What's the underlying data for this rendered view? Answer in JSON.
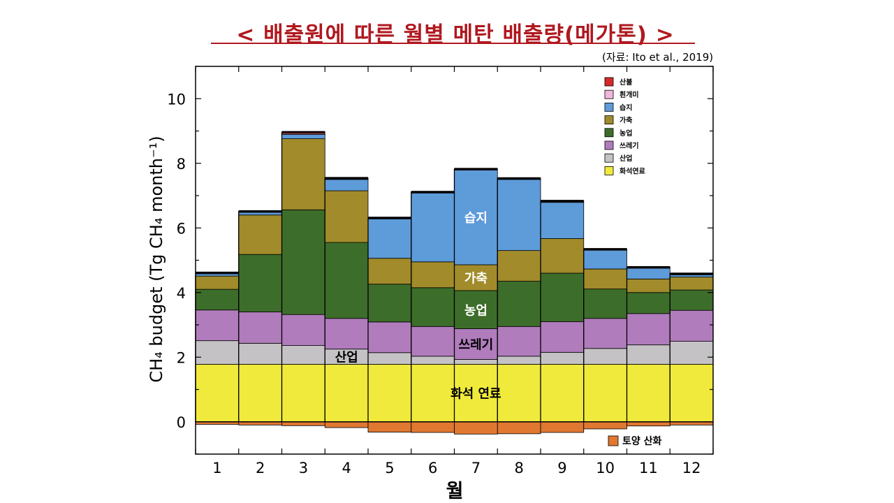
{
  "title": "< 배출원에 따른 월별 메탄 배출량(메가톤) >",
  "source": "(자료: Ito et al., 2019)",
  "chart_data": {
    "type": "bar",
    "stacked": true,
    "xlabel": "월",
    "ylabel": "CH₄ budget (Tg CH₄ month⁻¹)",
    "categories": [
      "1",
      "2",
      "3",
      "4",
      "5",
      "6",
      "7",
      "8",
      "9",
      "10",
      "11",
      "12"
    ],
    "ylim": [
      -1,
      11
    ],
    "yticks": [
      0,
      2,
      4,
      6,
      8,
      10
    ],
    "grid": false,
    "legend_position": "top-right",
    "series": [
      {
        "name": "화석연료",
        "color": "#f0ea3c",
        "values": [
          1.78,
          1.78,
          1.78,
          1.78,
          1.78,
          1.78,
          1.78,
          1.78,
          1.78,
          1.78,
          1.78,
          1.78
        ]
      },
      {
        "name": "산업",
        "color": "#c4c2c4",
        "values": [
          0.73,
          0.65,
          0.58,
          0.47,
          0.36,
          0.25,
          0.15,
          0.25,
          0.37,
          0.49,
          0.6,
          0.71
        ]
      },
      {
        "name": "쓰레기",
        "color": "#b07cbc",
        "values": [
          0.95,
          0.97,
          0.96,
          0.95,
          0.95,
          0.92,
          0.95,
          0.92,
          0.95,
          0.93,
          0.97,
          0.96
        ]
      },
      {
        "name": "농업",
        "color": "#3d6d2a",
        "values": [
          0.64,
          1.78,
          3.24,
          2.35,
          1.17,
          1.2,
          1.18,
          1.4,
          1.5,
          0.91,
          0.65,
          0.63
        ]
      },
      {
        "name": "가축",
        "color": "#a18b2a",
        "values": [
          0.41,
          1.22,
          2.2,
          1.6,
          0.8,
          0.8,
          0.8,
          0.95,
          1.07,
          0.62,
          0.42,
          0.4
        ]
      },
      {
        "name": "습지",
        "color": "#5e9bd9",
        "values": [
          0.07,
          0.08,
          0.13,
          0.35,
          1.22,
          2.13,
          2.93,
          2.2,
          1.12,
          0.58,
          0.33,
          0.07
        ]
      },
      {
        "name": "흰개미",
        "color": "#f0b8dc",
        "values": [
          0.02,
          0.02,
          0.03,
          0.02,
          0.02,
          0.02,
          0.02,
          0.02,
          0.02,
          0.02,
          0.02,
          0.02
        ]
      },
      {
        "name": "산불",
        "color": "#d42a2a",
        "values": [
          0.02,
          0.02,
          0.05,
          0.03,
          0.02,
          0.02,
          0.02,
          0.02,
          0.03,
          0.02,
          0.02,
          0.02
        ]
      },
      {
        "name": "토양 산화",
        "color": "#e07832",
        "values": [
          -0.08,
          -0.1,
          -0.12,
          -0.18,
          -0.32,
          -0.33,
          -0.38,
          -0.37,
          -0.33,
          -0.22,
          -0.13,
          -0.1
        ]
      }
    ],
    "annotations": [
      {
        "text": "화석 연료",
        "series": "화석연료",
        "category": "7"
      },
      {
        "text": "산업",
        "series": "산업",
        "category": "4"
      },
      {
        "text": "쓰레기",
        "series": "쓰레기",
        "category": "7"
      },
      {
        "text": "농업",
        "series": "농업",
        "category": "7"
      },
      {
        "text": "가축",
        "series": "가축",
        "category": "7"
      },
      {
        "text": "습지",
        "series": "습지",
        "category": "7"
      }
    ]
  }
}
